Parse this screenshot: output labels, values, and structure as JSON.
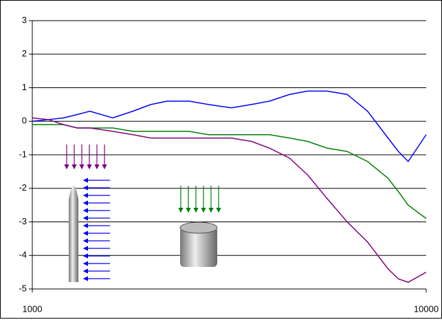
{
  "chart_data": {
    "type": "line",
    "x": [
      1000,
      1100,
      1200,
      1300,
      1400,
      1600,
      1800,
      2000,
      2200,
      2500,
      2800,
      3200,
      3600,
      4000,
      4500,
      5000,
      5600,
      6300,
      7100,
      8000,
      8500,
      9000,
      10000
    ],
    "series": [
      {
        "color": "#0000ff",
        "values": [
          0,
          0.05,
          0.1,
          0.2,
          0.3,
          0.1,
          0.3,
          0.5,
          0.6,
          0.6,
          0.5,
          0.4,
          0.5,
          0.6,
          0.8,
          0.9,
          0.9,
          0.8,
          0.3,
          -0.5,
          -0.9,
          -1.2,
          -0.4
        ]
      },
      {
        "color": "#008000",
        "values": [
          -0.1,
          -0.1,
          -0.1,
          -0.2,
          -0.2,
          -0.2,
          -0.3,
          -0.3,
          -0.3,
          -0.3,
          -0.4,
          -0.4,
          -0.4,
          -0.4,
          -0.5,
          -0.6,
          -0.8,
          -0.9,
          -1.2,
          -1.7,
          -2.1,
          -2.5,
          -2.9
        ]
      },
      {
        "color": "#800080",
        "values": [
          0.1,
          0.05,
          -0.1,
          -0.2,
          -0.2,
          -0.3,
          -0.4,
          -0.5,
          -0.5,
          -0.5,
          -0.5,
          -0.5,
          -0.6,
          -0.8,
          -1.1,
          -1.6,
          -2.3,
          -3.0,
          -3.6,
          -4.4,
          -4.7,
          -4.8,
          -4.5
        ]
      }
    ],
    "xlim": [
      1000,
      10000
    ],
    "xticks": [
      1000,
      10000
    ],
    "xscale": "log",
    "ylim": [
      -5,
      3
    ],
    "yticks": [
      -5,
      -4,
      -3,
      -2,
      -1,
      0,
      1,
      2,
      3
    ],
    "grid": true
  }
}
